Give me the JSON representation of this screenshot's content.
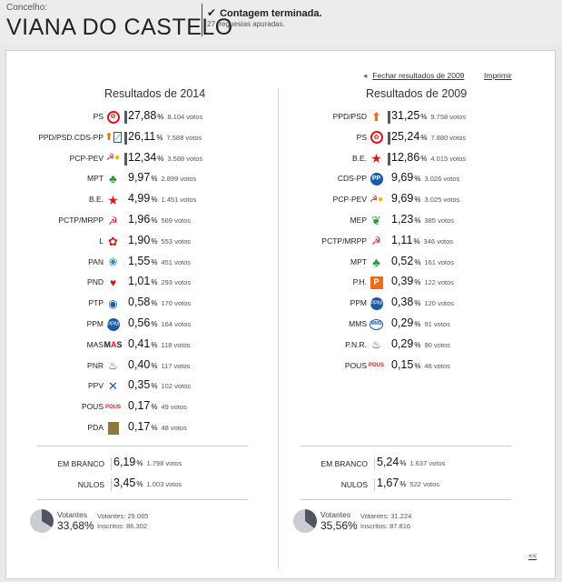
{
  "header": {
    "concelho_label": "Concelho:",
    "concelho_name": "VIANA DO CASTELO",
    "status_title": "Contagem terminada.",
    "status_sub": "27 freguesias apuradas."
  },
  "links": {
    "fechar": "Fechar resultados de 2009",
    "imprimir": "Imprimir",
    "back": "<<"
  },
  "results_2014": {
    "title": "Resultados de 2014",
    "parties": [
      {
        "name": "PS",
        "pct": "27,88",
        "votes": "8.104 votos",
        "icon": "rose-icon",
        "bar": true
      },
      {
        "name": "PPD/PSD.CDS-PP",
        "pct": "26,11",
        "votes": "7.588 votos",
        "icon": "ppd-cds-icon",
        "bar": true
      },
      {
        "name": "PCP-PEV",
        "pct": "12,34",
        "votes": "3.588 votos",
        "icon": "cdu-icon",
        "bar": true
      },
      {
        "name": "MPT",
        "pct": "9,97",
        "votes": "2.899 votos",
        "icon": "clover-icon",
        "bar": false
      },
      {
        "name": "B.E.",
        "pct": "4,99",
        "votes": "1.451 votos",
        "icon": "be-star-icon",
        "bar": false
      },
      {
        "name": "PCTP/MRPP",
        "pct": "1,96",
        "votes": "569 votos",
        "icon": "hammer-sickle-icon",
        "bar": false
      },
      {
        "name": "L",
        "pct": "1,90",
        "votes": "553 votos",
        "icon": "poppy-icon",
        "bar": false
      },
      {
        "name": "PAN",
        "pct": "1,55",
        "votes": "451 votos",
        "icon": "pan-icon",
        "bar": false
      },
      {
        "name": "PND",
        "pct": "1,01",
        "votes": "293 votos",
        "icon": "heart-icon",
        "bar": false
      },
      {
        "name": "PTP",
        "pct": "0,58",
        "votes": "170 votos",
        "icon": "ptp-icon",
        "bar": false
      },
      {
        "name": "PPM",
        "pct": "0,56",
        "votes": "164 votos",
        "icon": "ppm-icon",
        "bar": false
      },
      {
        "name": "MAS",
        "pct": "0,41",
        "votes": "118 votos",
        "icon": "mas-icon",
        "bar": false
      },
      {
        "name": "PNR",
        "pct": "0,40",
        "votes": "117 votos",
        "icon": "flame-icon",
        "bar": false
      },
      {
        "name": "PPV",
        "pct": "0,35",
        "votes": "102 votos",
        "icon": "ppv-icon",
        "bar": false
      },
      {
        "name": "POUS",
        "pct": "0,17",
        "votes": "49 votos",
        "icon": "pous-icon",
        "bar": false
      },
      {
        "name": "PDA",
        "pct": "0,17",
        "votes": "48 votos",
        "icon": "pda-icon",
        "bar": false
      }
    ],
    "summary": [
      {
        "name": "EM BRANCO",
        "pct": "6,19",
        "votes": "1.798 votos"
      },
      {
        "name": "NULOS",
        "pct": "3,45",
        "votes": "1.003 votos"
      }
    ],
    "turnout": {
      "label": "Votantes",
      "pct": "33,68%",
      "votantes": "Votantes: 29.065",
      "inscritos": "Inscritos: 86.302",
      "fraction": 0.3368
    }
  },
  "results_2009": {
    "title": "Resultados de 2009",
    "parties": [
      {
        "name": "PPD/PSD",
        "pct": "31,25",
        "votes": "9.758 votos",
        "icon": "ppd-arrow-icon",
        "bar": true
      },
      {
        "name": "PS",
        "pct": "25,24",
        "votes": "7.880 votos",
        "icon": "rose-icon",
        "bar": true
      },
      {
        "name": "B.E.",
        "pct": "12,86",
        "votes": "4.015 votos",
        "icon": "be-star-icon",
        "bar": true
      },
      {
        "name": "CDS-PP",
        "pct": "9,69",
        "votes": "3.026 votos",
        "icon": "cds-icon",
        "bar": false
      },
      {
        "name": "PCP-PEV",
        "pct": "9,69",
        "votes": "3.025 votos",
        "icon": "cdu-icon",
        "bar": false
      },
      {
        "name": "MEP",
        "pct": "1,23",
        "votes": "385 votos",
        "icon": "mep-icon",
        "bar": false
      },
      {
        "name": "PCTP/MRPP",
        "pct": "1,11",
        "votes": "346 votos",
        "icon": "hammer-sickle-icon",
        "bar": false
      },
      {
        "name": "MPT",
        "pct": "0,52",
        "votes": "161 votos",
        "icon": "clover-icon",
        "bar": false
      },
      {
        "name": "P.H.",
        "pct": "0,39",
        "votes": "122 votos",
        "icon": "ph-icon",
        "bar": false
      },
      {
        "name": "PPM",
        "pct": "0,38",
        "votes": "120 votos",
        "icon": "ppm-icon",
        "bar": false
      },
      {
        "name": "MMS",
        "pct": "0,29",
        "votes": "91 votos",
        "icon": "mms-icon",
        "bar": false
      },
      {
        "name": "P.N.R.",
        "pct": "0,29",
        "votes": "90 votos",
        "icon": "flame-icon",
        "bar": false
      },
      {
        "name": "POUS",
        "pct": "0,15",
        "votes": "46 votos",
        "icon": "pous-icon",
        "bar": false
      }
    ],
    "summary": [
      {
        "name": "EM BRANCO",
        "pct": "5,24",
        "votes": "1.637 votos"
      },
      {
        "name": "NULOS",
        "pct": "1,67",
        "votes": "522 votos"
      }
    ],
    "turnout": {
      "label": "Votantes",
      "pct": "35,56%",
      "votantes": "Votantes: 31.224",
      "inscritos": "Inscritos: 87.816",
      "fraction": 0.3556
    }
  },
  "colors": {
    "bar": "#555a64",
    "pie_fill": "#4f5561",
    "pie_bg": "#c9ccd2"
  }
}
